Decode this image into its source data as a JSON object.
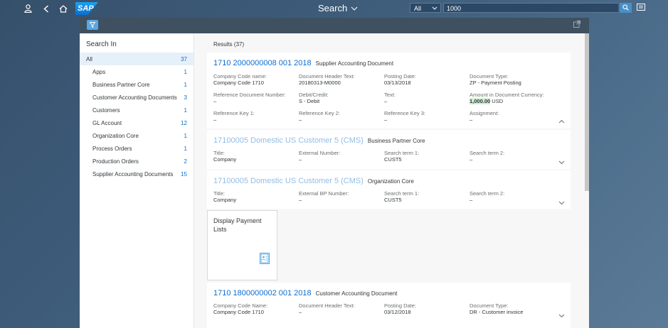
{
  "shell": {
    "logo": "SAP",
    "title": "Search",
    "scope": "All",
    "query": "1000"
  },
  "left": {
    "heading": "Search In",
    "categories": [
      {
        "label": "All",
        "count": "37"
      },
      {
        "label": "Apps",
        "count": "1"
      },
      {
        "label": "Business Partner Core",
        "count": "1"
      },
      {
        "label": "Customer Accounting Documents",
        "count": "3"
      },
      {
        "label": "Customers",
        "count": "1"
      },
      {
        "label": "GL Account",
        "count": "12"
      },
      {
        "label": "Organization Core",
        "count": "1"
      },
      {
        "label": "Process Orders",
        "count": "1"
      },
      {
        "label": "Production Orders",
        "count": "2"
      },
      {
        "label": "Supplier Accounting Documents",
        "count": "15"
      }
    ]
  },
  "results": {
    "title": "Results (37)",
    "items": [
      {
        "title": "1710 2000000008 001 2018",
        "type": "Supplier Accounting Document",
        "attrs": [
          {
            "label": "Company Code name:",
            "value": "Company Code 1710"
          },
          {
            "label": "Document Header Text:",
            "value": "20180313-M0000"
          },
          {
            "label": "Posting Date:",
            "value": "03/13/2018"
          },
          {
            "label": "Document Type:",
            "value": "ZP - Payment Posting"
          },
          {
            "label": "Reference Document Number:",
            "value": "–"
          },
          {
            "label": "Debit/Credit:",
            "value": "S - Debit"
          },
          {
            "label": "Text:",
            "value": "–"
          },
          {
            "label": "Amount in Document Currency:",
            "value_hl": "1,000.00",
            "value": " USD"
          },
          {
            "label": "Reference Key 1:",
            "value": "–"
          },
          {
            "label": "Reference Key 2:",
            "value": "–"
          },
          {
            "label": "Reference Key 3:",
            "value": "–"
          },
          {
            "label": "Assignment:",
            "value": "–"
          }
        ]
      },
      {
        "title": "17100005 Domestic US Customer 5 (CMS)",
        "type": "Business Partner Core",
        "attrs": [
          {
            "label": "Title:",
            "value": "Company"
          },
          {
            "label": "External Number:",
            "value": "–"
          },
          {
            "label": "Search term 1:",
            "value": "CUST5"
          },
          {
            "label": "Search term 2:",
            "value": "–"
          }
        ]
      },
      {
        "title": "17100005 Domestic US Customer 5 (CMS)",
        "type": "Organization Core",
        "attrs": [
          {
            "label": "Title:",
            "value": "Company"
          },
          {
            "label": "External BP Number:",
            "value": "–"
          },
          {
            "label": "Search term 1:",
            "value": "CUST5"
          },
          {
            "label": "Search term 2:",
            "value": "–"
          }
        ]
      },
      {
        "title": "1710 1800000002 001 2018",
        "type": "Customer Accounting Document",
        "attrs": [
          {
            "label": "Company Code Name:",
            "value": "Company Code 1710"
          },
          {
            "label": "Document Header Text:",
            "value": "–"
          },
          {
            "label": "Posting Date:",
            "value": "03/12/2018"
          },
          {
            "label": "Document Type:",
            "value": "DR - Customer invoice"
          }
        ]
      }
    ],
    "tile": {
      "title": "Display Payment Lists",
      "icon": "payment-list-icon"
    }
  }
}
